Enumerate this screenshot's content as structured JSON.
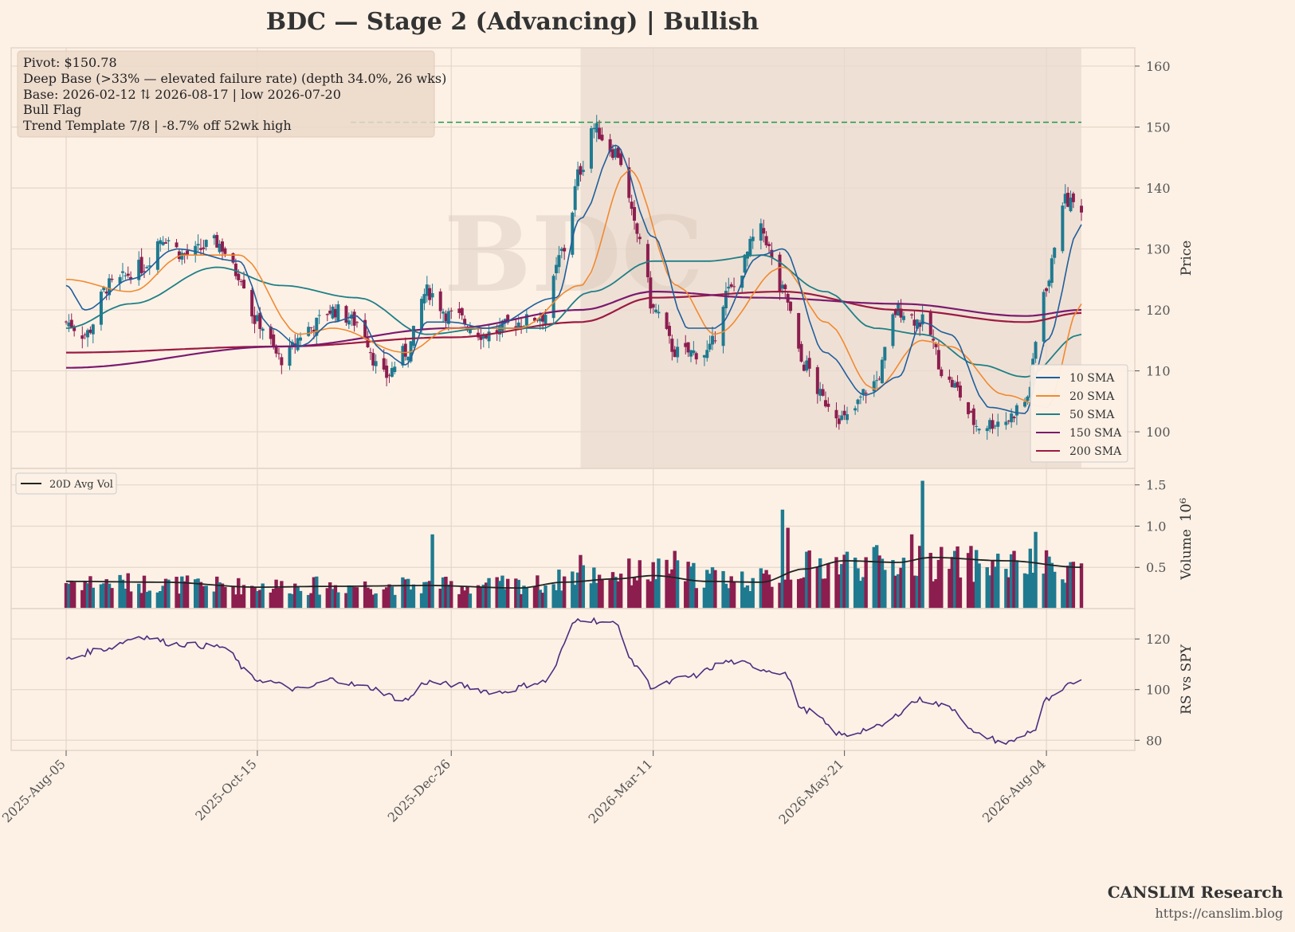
{
  "title": "BDC  —  Stage 2 (Advancing)  |  Bullish",
  "watermark": "BDC",
  "annotation": {
    "lines": [
      "Pivot: $150.78",
      "Deep Base (>33% — elevated failure rate)  (depth 34.0%, 26 wks)",
      "Base: 2026-02-12 ⇅ 2026-08-17  |  low 2026-07-20",
      "Bull Flag",
      "Trend Template 7/8  |  -8.7% off 52wk high"
    ]
  },
  "brand": {
    "name": "CANSLIM Research",
    "url": "https://canslim.blog"
  },
  "colors": {
    "background": "#fdf1e6",
    "grid": "#e4d6c9",
    "up": "#1f7a90",
    "down": "#8c1e4f",
    "sma10": "#1f5f9c",
    "sma20": "#f08a30",
    "sma50": "#1f7f86",
    "sma150": "#7a1a6e",
    "sma200": "#9c1a42",
    "pivot": "#1f9a4a",
    "rs": "#4b2d7f",
    "avgvol": "#222222",
    "base_shade": "#e9d9cf"
  },
  "chart_data": [
    {
      "type": "candlestick",
      "ylabel": "Price",
      "ylim": [
        94,
        163
      ],
      "yticks": [
        100,
        110,
        120,
        130,
        140,
        150,
        160
      ],
      "date_range": [
        "2025-08-05",
        "2026-08-17"
      ],
      "x_ticks": [
        "2025-Aug-05",
        "2025-Oct-15",
        "2025-Dec-26",
        "2026-Mar-11",
        "2026-May-21",
        "2026-Aug-04"
      ],
      "pivot": 150.78,
      "base_zone": [
        "2026-02-12",
        "2026-08-17"
      ],
      "legend": [
        "10 SMA",
        "20 SMA",
        "50 SMA",
        "150 SMA",
        "200 SMA"
      ],
      "legend_position": "lower-right",
      "price_path": [
        [
          "2025-08-05",
          118
        ],
        [
          "2025-08-12",
          116
        ],
        [
          "2025-08-21",
          124
        ],
        [
          "2025-09-02",
          127
        ],
        [
          "2025-09-10",
          132
        ],
        [
          "2025-09-18",
          129
        ],
        [
          "2025-09-30",
          131
        ],
        [
          "2025-10-08",
          126
        ],
        [
          "2025-10-15",
          118
        ],
        [
          "2025-10-24",
          112
        ],
        [
          "2025-11-03",
          117
        ],
        [
          "2025-11-12",
          120
        ],
        [
          "2025-11-21",
          118
        ],
        [
          "2025-12-01",
          109
        ],
        [
          "2025-12-09",
          113
        ],
        [
          "2025-12-17",
          123
        ],
        [
          "2025-12-26",
          119
        ],
        [
          "2026-01-08",
          116
        ],
        [
          "2026-01-20",
          118
        ],
        [
          "2026-01-29",
          119
        ],
        [
          "2026-02-06",
          130
        ],
        [
          "2026-02-12",
          143
        ],
        [
          "2026-02-16",
          150
        ],
        [
          "2026-02-25",
          146
        ],
        [
          "2026-03-06",
          132
        ],
        [
          "2026-03-11",
          120
        ],
        [
          "2026-03-20",
          113
        ],
        [
          "2026-03-31",
          113
        ],
        [
          "2026-04-08",
          123
        ],
        [
          "2026-04-20",
          133
        ],
        [
          "2026-04-28",
          123
        ],
        [
          "2026-05-06",
          111
        ],
        [
          "2026-05-14",
          105
        ],
        [
          "2026-05-21",
          102
        ],
        [
          "2026-06-01",
          108
        ],
        [
          "2026-06-10",
          120
        ],
        [
          "2026-06-19",
          118
        ],
        [
          "2026-06-29",
          108
        ],
        [
          "2026-07-10",
          101
        ],
        [
          "2026-07-20",
          102
        ],
        [
          "2026-07-27",
          105
        ],
        [
          "2026-08-04",
          124
        ],
        [
          "2026-08-10",
          138
        ],
        [
          "2026-08-17",
          137
        ]
      ],
      "sma10_path": [
        [
          "2025-08-05",
          124
        ],
        [
          "2025-08-12",
          120
        ],
        [
          "2025-08-29",
          125
        ],
        [
          "2025-09-15",
          130
        ],
        [
          "2025-10-08",
          128
        ],
        [
          "2025-10-20",
          117
        ],
        [
          "2025-10-31",
          114
        ],
        [
          "2025-11-12",
          118
        ],
        [
          "2025-11-21",
          119
        ],
        [
          "2025-12-01",
          113
        ],
        [
          "2025-12-09",
          111
        ],
        [
          "2025-12-17",
          118
        ],
        [
          "2025-12-26",
          118
        ],
        [
          "2026-01-08",
          117
        ],
        [
          "2026-02-03",
          122
        ],
        [
          "2026-02-12",
          135
        ],
        [
          "2026-02-25",
          147
        ],
        [
          "2026-03-11",
          132
        ],
        [
          "2026-03-24",
          117
        ],
        [
          "2026-04-03",
          117
        ],
        [
          "2026-04-20",
          129
        ],
        [
          "2026-04-28",
          130
        ],
        [
          "2026-05-14",
          113
        ],
        [
          "2026-05-29",
          106
        ],
        [
          "2026-06-10",
          109
        ],
        [
          "2026-06-19",
          118
        ],
        [
          "2026-06-29",
          116
        ],
        [
          "2026-07-14",
          104
        ],
        [
          "2026-07-27",
          103
        ],
        [
          "2026-08-04",
          115
        ],
        [
          "2026-08-17",
          134
        ]
      ],
      "sma20_path": [
        [
          "2025-08-05",
          125
        ],
        [
          "2025-08-29",
          123
        ],
        [
          "2025-09-18",
          129
        ],
        [
          "2025-10-08",
          129
        ],
        [
          "2025-10-31",
          116
        ],
        [
          "2025-11-12",
          117
        ],
        [
          "2025-12-09",
          113
        ],
        [
          "2025-12-26",
          117
        ],
        [
          "2026-01-20",
          117
        ],
        [
          "2026-02-12",
          124
        ],
        [
          "2026-03-02",
          143
        ],
        [
          "2026-03-20",
          124
        ],
        [
          "2026-04-03",
          116
        ],
        [
          "2026-04-28",
          127
        ],
        [
          "2026-05-14",
          118
        ],
        [
          "2026-06-01",
          107
        ],
        [
          "2026-06-19",
          115
        ],
        [
          "2026-06-29",
          114
        ],
        [
          "2026-07-20",
          106
        ],
        [
          "2026-08-04",
          104
        ],
        [
          "2026-08-17",
          121
        ]
      ],
      "sma50_path": [
        [
          "2025-08-05",
          117
        ],
        [
          "2025-08-29",
          121
        ],
        [
          "2025-09-30",
          127
        ],
        [
          "2025-10-24",
          124
        ],
        [
          "2025-11-21",
          122
        ],
        [
          "2025-12-17",
          116
        ],
        [
          "2026-01-08",
          117
        ],
        [
          "2026-01-29",
          117
        ],
        [
          "2026-02-16",
          123
        ],
        [
          "2026-03-11",
          128
        ],
        [
          "2026-03-31",
          128
        ],
        [
          "2026-04-20",
          129
        ],
        [
          "2026-05-14",
          123
        ],
        [
          "2026-06-01",
          117
        ],
        [
          "2026-06-19",
          116
        ],
        [
          "2026-07-10",
          111
        ],
        [
          "2026-07-27",
          109
        ],
        [
          "2026-08-17",
          116
        ]
      ],
      "sma150_path": [
        [
          "2025-08-05",
          110.5
        ],
        [
          "2025-10-24",
          114
        ],
        [
          "2025-12-26",
          117
        ],
        [
          "2026-02-12",
          120
        ],
        [
          "2026-03-11",
          123
        ],
        [
          "2026-04-20",
          122
        ],
        [
          "2026-06-10",
          121
        ],
        [
          "2026-07-27",
          119
        ],
        [
          "2026-08-17",
          120
        ]
      ],
      "sma200_path": [
        [
          "2025-08-05",
          113
        ],
        [
          "2025-10-24",
          114
        ],
        [
          "2025-12-26",
          115.5
        ],
        [
          "2026-02-12",
          118
        ],
        [
          "2026-03-11",
          122
        ],
        [
          "2026-04-28",
          123
        ],
        [
          "2026-06-10",
          120
        ],
        [
          "2026-07-27",
          118
        ],
        [
          "2026-08-17",
          119.5
        ]
      ]
    },
    {
      "type": "bar",
      "ylabel": "Volume",
      "exponent": "10^6",
      "ylim": [
        0,
        1.7
      ],
      "yticks": [
        0.5,
        1.0,
        1.5
      ],
      "legend": [
        "20D Avg Vol"
      ],
      "legend_position": "top-left",
      "volume_levels": [
        [
          "2025-08-05",
          0.35
        ],
        [
          "2025-10-15",
          0.3
        ],
        [
          "2025-12-26",
          0.3
        ],
        [
          "2026-01-29",
          0.32
        ],
        [
          "2026-02-12",
          0.45
        ],
        [
          "2026-03-11",
          0.48
        ],
        [
          "2026-04-20",
          0.38
        ],
        [
          "2026-05-06",
          0.55
        ],
        [
          "2026-05-21",
          0.6
        ],
        [
          "2026-06-19",
          0.6
        ],
        [
          "2026-08-17",
          0.55
        ]
      ],
      "volume_spikes": [
        [
          "2025-12-19",
          0.9
        ],
        [
          "2026-04-28",
          1.2
        ],
        [
          "2026-04-30",
          0.98
        ],
        [
          "2026-06-19",
          1.55
        ],
        [
          "2026-06-15",
          0.9
        ],
        [
          "2026-07-31",
          0.93
        ],
        [
          "2026-03-19",
          0.7
        ],
        [
          "2026-02-12",
          0.65
        ]
      ],
      "avg_vol_path": [
        [
          "2025-08-05",
          0.33
        ],
        [
          "2025-09-10",
          0.32
        ],
        [
          "2025-10-15",
          0.26
        ],
        [
          "2025-11-12",
          0.27
        ],
        [
          "2025-12-17",
          0.28
        ],
        [
          "2026-01-20",
          0.25
        ],
        [
          "2026-02-06",
          0.32
        ],
        [
          "2026-02-25",
          0.36
        ],
        [
          "2026-03-11",
          0.4
        ],
        [
          "2026-03-31",
          0.33
        ],
        [
          "2026-04-20",
          0.32
        ],
        [
          "2026-05-06",
          0.48
        ],
        [
          "2026-05-21",
          0.58
        ],
        [
          "2026-06-10",
          0.56
        ],
        [
          "2026-06-22",
          0.62
        ],
        [
          "2026-07-20",
          0.58
        ],
        [
          "2026-08-17",
          0.5
        ]
      ]
    },
    {
      "type": "line",
      "ylabel": "RS vs SPY",
      "ylim": [
        76,
        132
      ],
      "yticks": [
        80,
        100,
        120
      ],
      "rs_path": [
        [
          "2025-08-05",
          112
        ],
        [
          "2025-08-18",
          116
        ],
        [
          "2025-09-02",
          121
        ],
        [
          "2025-09-15",
          118
        ],
        [
          "2025-10-01",
          117
        ],
        [
          "2025-10-15",
          104
        ],
        [
          "2025-10-31",
          100
        ],
        [
          "2025-11-12",
          104
        ],
        [
          "2025-11-24",
          101
        ],
        [
          "2025-12-09",
          96
        ],
        [
          "2025-12-17",
          103
        ],
        [
          "2025-12-26",
          102
        ],
        [
          "2026-01-12",
          99
        ],
        [
          "2026-01-29",
          103
        ],
        [
          "2026-02-12",
          128
        ],
        [
          "2026-02-25",
          126
        ],
        [
          "2026-03-04",
          110
        ],
        [
          "2026-03-11",
          101
        ],
        [
          "2026-03-24",
          105
        ],
        [
          "2026-04-08",
          111
        ],
        [
          "2026-04-28",
          107
        ],
        [
          "2026-05-06",
          92
        ],
        [
          "2026-05-21",
          82
        ],
        [
          "2026-06-01",
          85
        ],
        [
          "2026-06-19",
          96
        ],
        [
          "2026-06-29",
          93
        ],
        [
          "2026-07-10",
          82
        ],
        [
          "2026-07-20",
          79
        ],
        [
          "2026-07-31",
          84
        ],
        [
          "2026-08-04",
          96
        ],
        [
          "2026-08-17",
          104
        ]
      ]
    }
  ]
}
